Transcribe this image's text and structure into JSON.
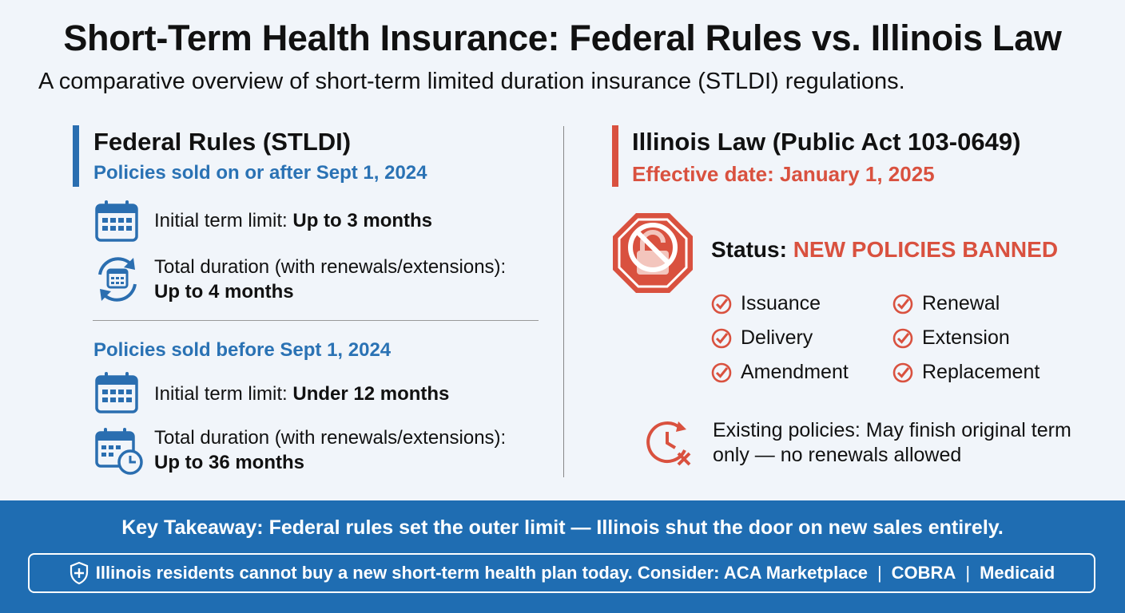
{
  "header": {
    "title": "Short-Term Health Insurance: Federal Rules vs. Illinois Law",
    "subtitle": "A comparative overview of short-term limited duration insurance (STLDI) regulations."
  },
  "federal": {
    "title": "Federal Rules (STLDI)",
    "group1": {
      "label": "Policies sold on or after Sept 1, 2024",
      "rows": [
        {
          "icon": "calendar-icon",
          "label": "Initial term limit: ",
          "value": "Up to 3 months"
        },
        {
          "icon": "calendar-renew-icon",
          "label": "Total duration (with renewals/extensions):",
          "value": "Up to 4 months"
        }
      ]
    },
    "group2": {
      "label": "Policies sold before Sept 1, 2024",
      "rows": [
        {
          "icon": "calendar-icon",
          "label": "Initial term limit: ",
          "value": "Under 12 months"
        },
        {
          "icon": "calendar-clock-icon",
          "label": "Total duration (with renewals/extensions):",
          "value": "Up to 36 months"
        }
      ]
    }
  },
  "illinois": {
    "title": "Illinois Law (Public Act 103-0649)",
    "effective": "Effective date: January 1, 2025",
    "status_label": "Status: ",
    "status_value": "NEW POLICIES BANNED",
    "banned_items": [
      "Issuance",
      "Renewal",
      "Delivery",
      "Extension",
      "Amendment",
      "Replacement"
    ],
    "existing_note": "Existing policies: May finish original term only — no renewals allowed"
  },
  "footer": {
    "takeaway": "Key Takeaway: Federal rules set the outer limit — Illinois shut the door on new sales entirely.",
    "note": "Illinois residents cannot buy a new short-term health plan today. Consider: ACA Marketplace",
    "options": [
      "COBRA",
      "Medicaid"
    ],
    "separator": "|"
  },
  "colors": {
    "federal_accent": "#2a6eb0",
    "illinois_accent": "#d9513f",
    "footer_bg": "#1f6db2",
    "page_bg": "#f1f5fa"
  }
}
